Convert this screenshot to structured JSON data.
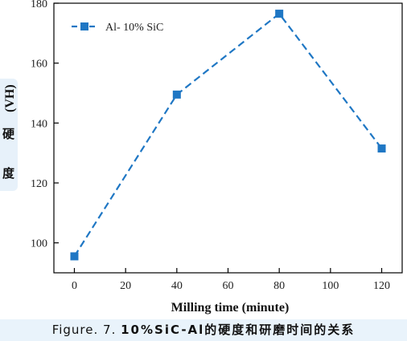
{
  "chart_data": {
    "type": "line",
    "title": "",
    "xlabel": "Milling time (minute)",
    "ylabel": "(VH)",
    "ylabel_cn": [
      "硬",
      "度"
    ],
    "x": [
      0,
      40,
      80,
      120
    ],
    "series": [
      {
        "name": "Al- 10% SiC",
        "values": [
          95.5,
          149.5,
          176.5,
          131.5
        ],
        "color": "#1f77c4"
      }
    ],
    "xlim": [
      -8,
      128
    ],
    "ylim": [
      90,
      180
    ],
    "xticks": [
      0,
      20,
      40,
      60,
      80,
      100,
      120
    ],
    "yticks": [
      100,
      120,
      140,
      160,
      180
    ],
    "line_style": "dashed",
    "marker": "square",
    "legend_position": "top-left",
    "grid": false
  },
  "caption": {
    "prefix": "Figure. 7.",
    "text": "10%SiC-Al的硬度和研磨时间的关系"
  }
}
